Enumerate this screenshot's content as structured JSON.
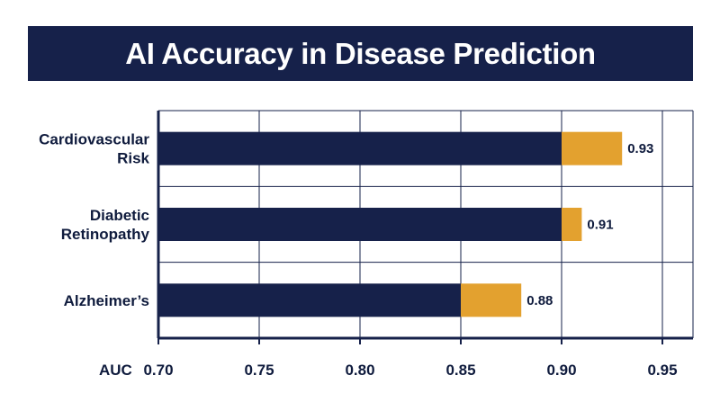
{
  "colors": {
    "navy": "#16214a",
    "gold": "#e3a12f",
    "grid": "#16214a",
    "text": "#0f1b3d"
  },
  "chart_data": {
    "type": "bar",
    "orientation": "horizontal",
    "title": "AI Accuracy in Disease Prediction",
    "xlabel": "AUC",
    "ylabel": "",
    "xlim": [
      0.7,
      0.965
    ],
    "xticks": [
      "0.70",
      "0.75",
      "0.80",
      "0.85",
      "0.90",
      "0.95"
    ],
    "grid": true,
    "categories": [
      [
        "Cardiovascular",
        "Risk"
      ],
      [
        "Diabetic",
        "Retinopathy"
      ],
      [
        "Alzheimer’s"
      ]
    ],
    "series": [
      {
        "values": [
          0.9,
          0.9,
          0.85
        ],
        "color": "#16214a"
      },
      {
        "values": [
          0.03,
          0.01,
          0.03
        ],
        "color": "#e3a12f"
      }
    ],
    "totals": [
      0.93,
      0.91,
      0.88
    ],
    "value_labels": [
      "0.93",
      "0.91",
      "0.88"
    ]
  }
}
